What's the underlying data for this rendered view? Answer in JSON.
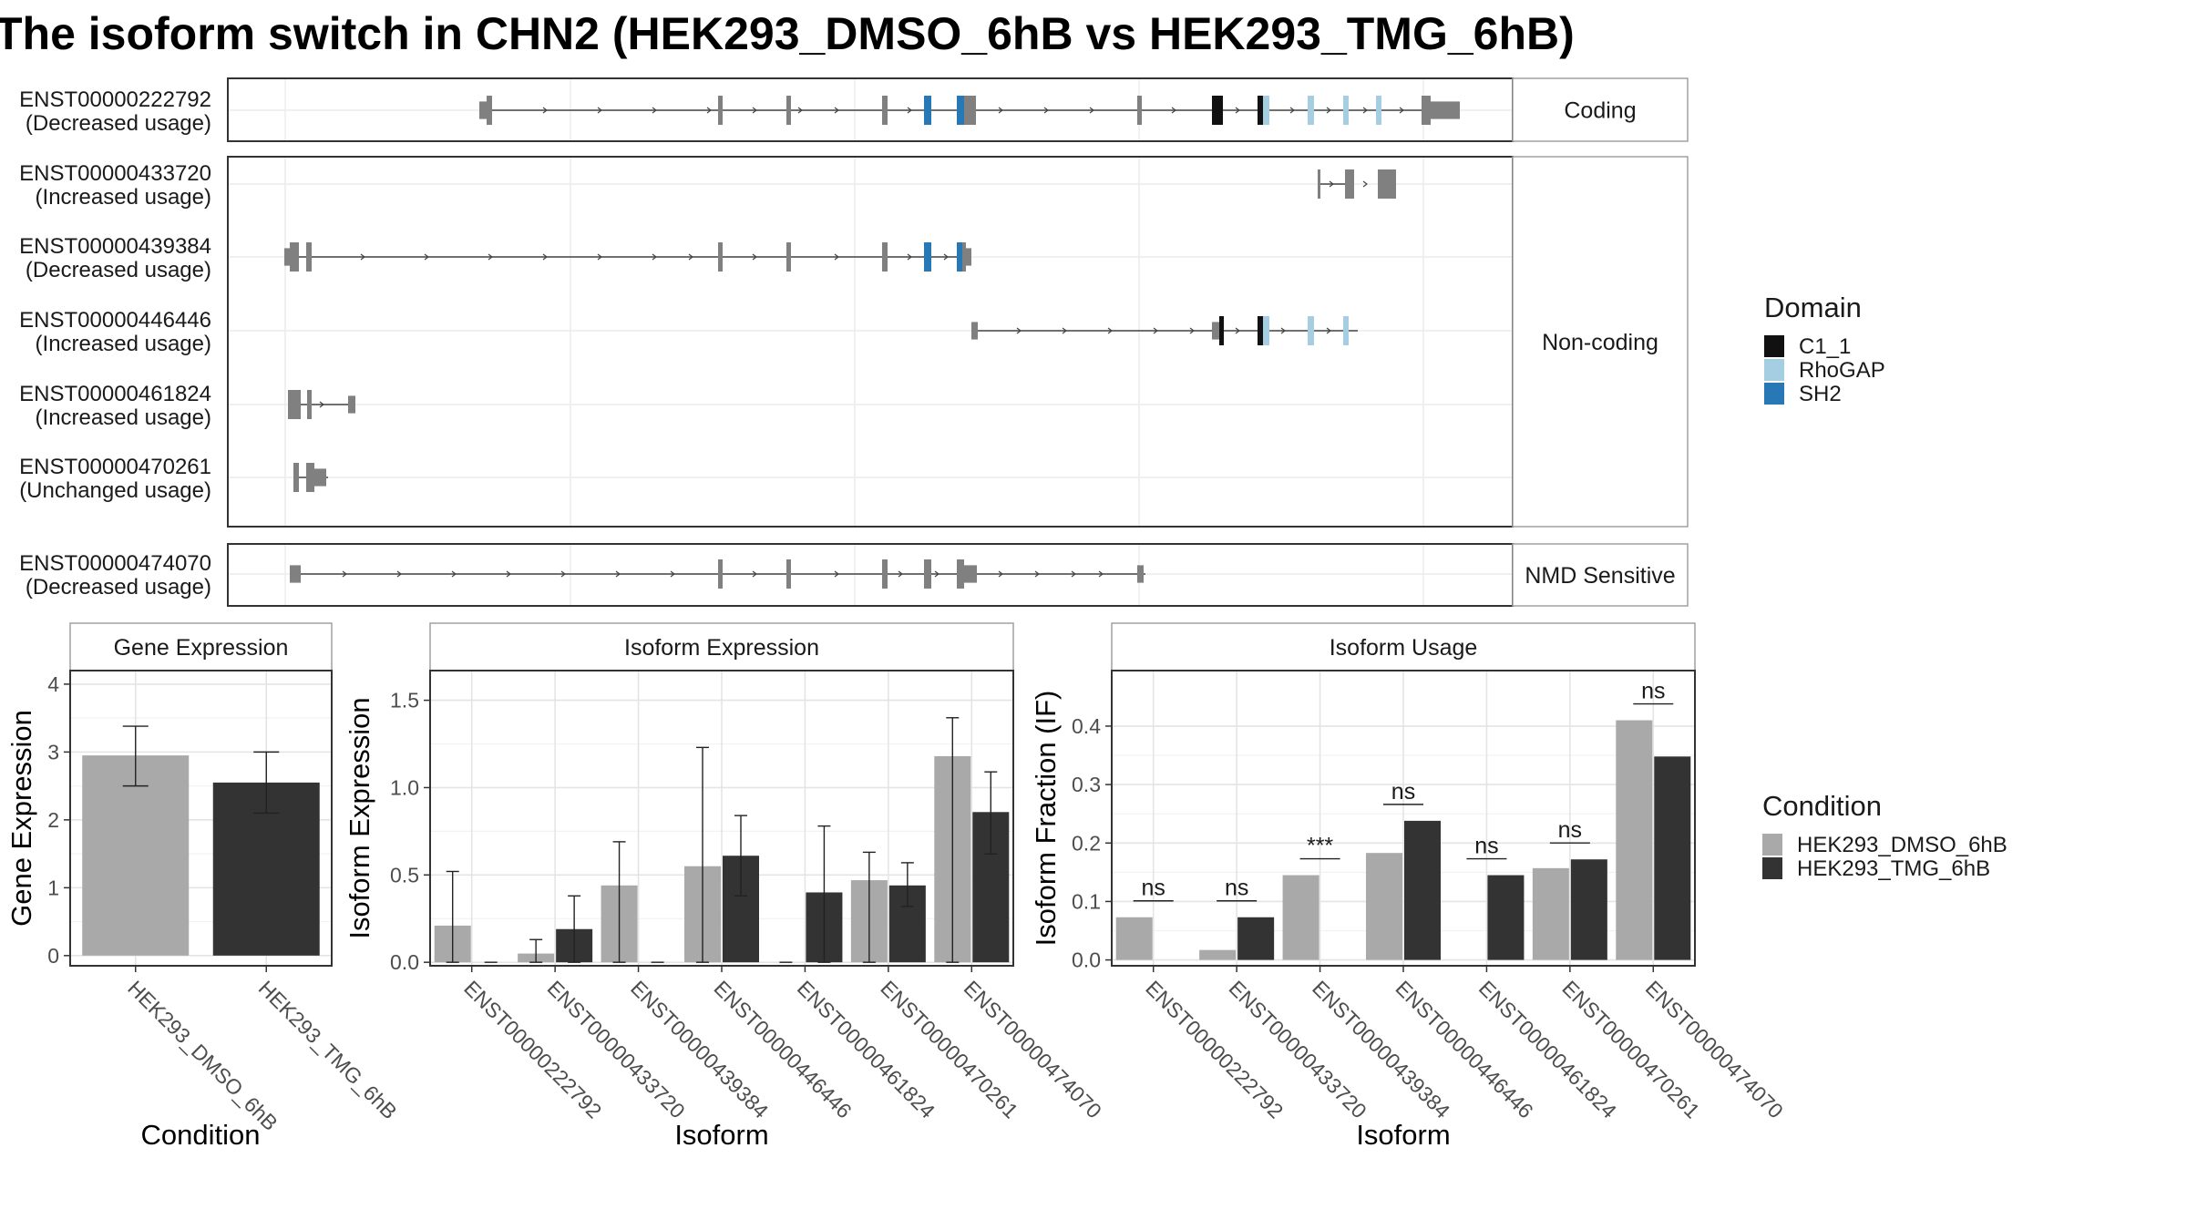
{
  "title": "The isoform switch in CHN2 (HEK293_DMSO_6hB vs HEK293_TMG_6hB)",
  "colors": {
    "exon": "#808080",
    "C1_1": "#111111",
    "RhoGAP": "#a6cee3",
    "SH2": "#2878b5",
    "dmso": "#a9a9a9",
    "tmg": "#333333"
  },
  "structure": {
    "groups": [
      {
        "label": "Coding",
        "rows": [
          0
        ]
      },
      {
        "label": "Non-coding",
        "rows": [
          1,
          2,
          3,
          4,
          5
        ]
      },
      {
        "label": "NMD Sensitive",
        "rows": [
          6
        ]
      }
    ],
    "transcripts": [
      {
        "id": "ENST00000222792",
        "usage": "(Decreased usage)",
        "exons": [
          [
            0.195,
            0.203,
            0.75
          ],
          [
            0.202,
            0.21,
            0.95
          ],
          [
            0.535,
            0.54,
            0.95
          ],
          [
            0.588,
            0.594,
            0.95
          ],
          [
            0.685,
            0.69,
            0.95
          ],
          [
            0.769,
            0.775,
            0.95
          ],
          [
            0.795,
            0.805,
            0.95
          ],
          [
            0.88,
            0.885,
            0.95
          ],
          [
            0.101,
            0.101,
            0.95
          ],
          [
            0.945,
            0.95,
            0.95
          ],
          [
            0.97,
            0.98,
            0.95
          ],
          [
            0.98,
            1.0,
            0.95
          ],
          [
            1.0,
            1.023,
            0.85
          ],
          [
            0.77,
            0.775,
            0.95
          ],
          [
            0.81,
            0.818,
            0.95
          ],
          [
            0.885,
            0.89,
            0.95
          ],
          [
            1.005,
            1.01,
            0.95
          ],
          [
            1.03,
            1.035,
            0.95
          ],
          [
            1.05,
            1.056,
            0.95
          ],
          [
            1.076,
            1.082,
            0.95
          ],
          [
            1.1,
            1.106,
            0.95
          ],
          [
            1.116,
            1.121,
            0.95
          ],
          [
            1.121,
            1.145,
            0.5
          ]
        ],
        "domains": [
          [
            "SH2",
            0.77,
            0.775
          ],
          [
            "SH2",
            0.81,
            0.818
          ],
          [
            "C1_1",
            1.005,
            1.012
          ],
          [
            "C1_1",
            1.04,
            1.045
          ],
          [
            "RhoGAP",
            1.048,
            1.052
          ],
          [
            "RhoGAP",
            1.076,
            1.082
          ],
          [
            "RhoGAP",
            1.1,
            1.106
          ],
          [
            "RhoGAP",
            1.116,
            1.121
          ]
        ]
      },
      {
        "id": "ENST00000433720",
        "usage": "(Increased usage)",
        "exons": [],
        "domains": []
      },
      {
        "id": "ENST00000439384",
        "usage": "(Decreased usage)",
        "exons": [],
        "domains": []
      },
      {
        "id": "ENST00000446446",
        "usage": "(Increased usage)",
        "exons": [],
        "domains": []
      },
      {
        "id": "ENST00000461824",
        "usage": "(Increased usage)",
        "exons": [],
        "domains": []
      },
      {
        "id": "ENST00000470261",
        "usage": "(Unchanged usage)",
        "exons": [],
        "domains": []
      },
      {
        "id": "ENST00000474070",
        "usage": "(Decreased usage)",
        "exons": [],
        "domains": []
      }
    ]
  },
  "legends": {
    "domain": {
      "title": "Domain",
      "items": [
        {
          "label": "C1_1",
          "color": "#111111"
        },
        {
          "label": "RhoGAP",
          "color": "#a6cee3"
        },
        {
          "label": "SH2",
          "color": "#2878b5"
        }
      ]
    },
    "condition": {
      "title": "Condition",
      "items": [
        {
          "label": "HEK293_DMSO_6hB",
          "color": "#a9a9a9"
        },
        {
          "label": "HEK293_TMG_6hB",
          "color": "#333333"
        }
      ]
    }
  },
  "chart_data": [
    {
      "type": "bar",
      "title": "Gene Expression",
      "xlabel": "Condition",
      "ylabel": "Gene Expression",
      "categories": [
        "HEK293_DMSO_6hB",
        "HEK293_TMG_6hB"
      ],
      "values": [
        2.95,
        2.55
      ],
      "err_low": [
        2.5,
        2.1
      ],
      "err_high": [
        3.38,
        3.0
      ],
      "ylim": [
        -0.15,
        4.2
      ],
      "yticks": [
        "0",
        "1",
        "2",
        "3",
        "4"
      ],
      "grid": true
    },
    {
      "type": "bar",
      "title": "Isoform Expression",
      "xlabel": "Isoform",
      "ylabel": "Isoform Expression",
      "categories": [
        "ENST00000222792",
        "ENST00000433720",
        "ENST00000439384",
        "ENST00000446446",
        "ENST00000461824",
        "ENST00000470261",
        "ENST00000474070"
      ],
      "series": [
        {
          "name": "HEK293_DMSO_6hB",
          "values": [
            0.21,
            0.05,
            0.44,
            0.55,
            0.0,
            0.47,
            1.18
          ],
          "err_low": [
            0.0,
            0.0,
            0.0,
            0.0,
            0.0,
            0.0,
            0.0
          ],
          "err_high": [
            0.52,
            0.13,
            0.69,
            1.23,
            0.0,
            0.63,
            1.4
          ]
        },
        {
          "name": "HEK293_TMG_6hB",
          "values": [
            0.0,
            0.19,
            0.0,
            0.61,
            0.4,
            0.44,
            0.86
          ],
          "err_low": [
            0.0,
            0.0,
            0.0,
            0.38,
            0.0,
            0.32,
            0.62
          ],
          "err_high": [
            0.0,
            0.38,
            0.0,
            0.84,
            0.78,
            0.57,
            1.09
          ]
        }
      ],
      "ylim": [
        -0.02,
        1.67
      ],
      "yticks": [
        "0.0",
        "0.5",
        "1.0",
        "1.5"
      ],
      "grid": true
    },
    {
      "type": "bar",
      "title": "Isoform Usage",
      "xlabel": "Isoform",
      "ylabel": "Isoform Fraction (IF)",
      "categories": [
        "ENST00000222792",
        "ENST00000433720",
        "ENST00000439384",
        "ENST00000446446",
        "ENST00000461824",
        "ENST00000470261",
        "ENST00000474070"
      ],
      "series": [
        {
          "name": "HEK293_DMSO_6hB",
          "values": [
            0.073,
            0.017,
            0.145,
            0.183,
            0.0,
            0.157,
            0.41
          ]
        },
        {
          "name": "HEK293_TMG_6hB",
          "values": [
            0.0,
            0.073,
            0.0,
            0.238,
            0.145,
            0.172,
            0.348
          ]
        }
      ],
      "annotations": [
        "ns",
        "ns",
        "***",
        "ns",
        "ns",
        "ns",
        "ns"
      ],
      "ylim": [
        -0.01,
        0.495
      ],
      "yticks": [
        "0.0",
        "0.1",
        "0.2",
        "0.3",
        "0.4"
      ],
      "grid": true
    }
  ]
}
